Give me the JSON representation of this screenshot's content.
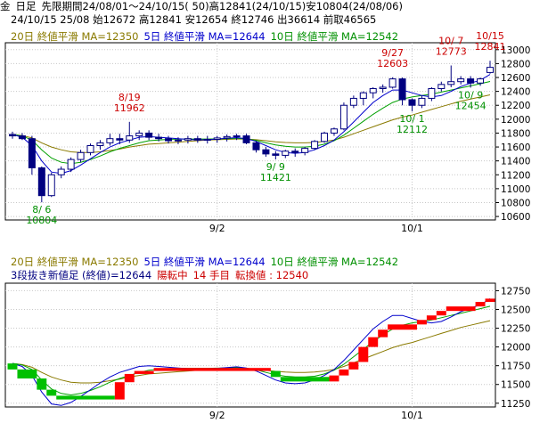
{
  "header": {
    "line1": [
      "金",
      "日足",
      "先限",
      "期間24/08/01～24/10/15( 50)高12841(24/10/15)安10804(24/08/06)"
    ],
    "line2": "24/10/15 25/08 始12672 高12841 安12654 終12746 出36614 前取46565"
  },
  "top_legend": {
    "ma20": "20日 終値平滑 MA=12350",
    "ma5": "5日 終値平滑 MA=12644",
    "ma10": "10日 終値平滑 MA=12542"
  },
  "bottom_legend": {
    "ma20": "20日 終値平滑 MA=12350",
    "ma5": "5日 終値平滑 MA=12644",
    "ma10": "10日 終値平滑 MA=12542",
    "line2_a": "3段抜き新値足 (終値)=12644",
    "line2_b": "陽転中",
    "line2_c": "14 手目",
    "line2_d": "転換値 : 12540"
  },
  "colors": {
    "up_candle": "#ffffff",
    "down_candle": "#000080",
    "ma20": "#8a7a00",
    "ma5": "#0000cc",
    "ma10": "#00a000",
    "bull_block": "#ff0000",
    "bear_block": "#00c000",
    "grid": "#c8c8c8",
    "annotation_high": "#cc0000",
    "annotation_low": "#009000"
  },
  "chart_data": [
    {
      "type": "candlestick",
      "y_ticks": [
        10600,
        10800,
        11000,
        11200,
        11400,
        11600,
        11800,
        12000,
        12200,
        12400,
        12600,
        12800,
        13000
      ],
      "ylim": [
        10550,
        13100
      ],
      "x_ticks": [
        "9/2",
        "10/1"
      ],
      "x_tick_index": [
        21,
        41
      ],
      "ohlc": [
        [
          11780,
          11820,
          11720,
          11760
        ],
        [
          11760,
          11800,
          11700,
          11720
        ],
        [
          11720,
          11760,
          11200,
          11300
        ],
        [
          11300,
          11320,
          10804,
          10900
        ],
        [
          10900,
          11230,
          10880,
          11200
        ],
        [
          11200,
          11320,
          11150,
          11280
        ],
        [
          11280,
          11450,
          11240,
          11420
        ],
        [
          11420,
          11560,
          11380,
          11520
        ],
        [
          11520,
          11650,
          11480,
          11620
        ],
        [
          11620,
          11700,
          11560,
          11660
        ],
        [
          11660,
          11790,
          11620,
          11720
        ],
        [
          11720,
          11790,
          11640,
          11700
        ],
        [
          11700,
          11962,
          11660,
          11760
        ],
        [
          11760,
          11840,
          11700,
          11800
        ],
        [
          11800,
          11840,
          11700,
          11740
        ],
        [
          11740,
          11790,
          11680,
          11720
        ],
        [
          11720,
          11760,
          11650,
          11690
        ],
        [
          11690,
          11740,
          11640,
          11700
        ],
        [
          11700,
          11760,
          11650,
          11720
        ],
        [
          11720,
          11760,
          11660,
          11700
        ],
        [
          11700,
          11760,
          11650,
          11710
        ],
        [
          11710,
          11760,
          11660,
          11730
        ],
        [
          11730,
          11780,
          11680,
          11750
        ],
        [
          11750,
          11790,
          11700,
          11760
        ],
        [
          11760,
          11790,
          11640,
          11660
        ],
        [
          11660,
          11690,
          11520,
          11560
        ],
        [
          11560,
          11600,
          11460,
          11500
        ],
        [
          11500,
          11540,
          11421,
          11480
        ],
        [
          11480,
          11560,
          11440,
          11540
        ],
        [
          11540,
          11580,
          11460,
          11520
        ],
        [
          11520,
          11600,
          11480,
          11580
        ],
        [
          11580,
          11700,
          11560,
          11680
        ],
        [
          11680,
          11820,
          11660,
          11800
        ],
        [
          11800,
          11880,
          11760,
          11860
        ],
        [
          11860,
          12240,
          11840,
          12200
        ],
        [
          12200,
          12340,
          12160,
          12300
        ],
        [
          12300,
          12400,
          12200,
          12380
        ],
        [
          12380,
          12460,
          12300,
          12440
        ],
        [
          12440,
          12500,
          12380,
          12460
        ],
        [
          12460,
          12603,
          12440,
          12580
        ],
        [
          12580,
          12600,
          12200,
          12280
        ],
        [
          12280,
          12300,
          12112,
          12200
        ],
        [
          12200,
          12340,
          12160,
          12300
        ],
        [
          12300,
          12460,
          12260,
          12440
        ],
        [
          12440,
          12540,
          12400,
          12500
        ],
        [
          12500,
          12773,
          12460,
          12540
        ],
        [
          12540,
          12620,
          12500,
          12580
        ],
        [
          12580,
          12620,
          12454,
          12520
        ],
        [
          12520,
          12600,
          12480,
          12580
        ],
        [
          12672,
          12841,
          12654,
          12746
        ]
      ],
      "ma20": [
        11780,
        11765,
        11730,
        11660,
        11600,
        11560,
        11530,
        11520,
        11520,
        11530,
        11550,
        11570,
        11600,
        11620,
        11640,
        11650,
        11660,
        11670,
        11680,
        11690,
        11700,
        11705,
        11710,
        11715,
        11715,
        11705,
        11690,
        11675,
        11665,
        11660,
        11660,
        11665,
        11680,
        11700,
        11740,
        11790,
        11840,
        11890,
        11940,
        11990,
        12030,
        12060,
        12100,
        12140,
        12180,
        12220,
        12260,
        12290,
        12320,
        12350
      ],
      "ma5": [
        11780,
        11740,
        11620,
        11400,
        11240,
        11220,
        11260,
        11340,
        11430,
        11520,
        11600,
        11660,
        11700,
        11740,
        11750,
        11740,
        11730,
        11720,
        11710,
        11700,
        11705,
        11715,
        11725,
        11735,
        11720,
        11680,
        11620,
        11560,
        11520,
        11510,
        11520,
        11560,
        11620,
        11700,
        11820,
        11960,
        12100,
        12240,
        12340,
        12420,
        12420,
        12380,
        12340,
        12320,
        12340,
        12400,
        12470,
        12520,
        12560,
        12644
      ],
      "ma10": [
        11780,
        11760,
        11700,
        11560,
        11440,
        11380,
        11360,
        11380,
        11420,
        11470,
        11530,
        11580,
        11620,
        11660,
        11690,
        11700,
        11710,
        11715,
        11715,
        11715,
        11715,
        11718,
        11720,
        11725,
        11715,
        11695,
        11660,
        11630,
        11610,
        11600,
        11600,
        11610,
        11640,
        11690,
        11770,
        11870,
        11970,
        12070,
        12160,
        12240,
        12290,
        12320,
        12340,
        12360,
        12390,
        12420,
        12450,
        12480,
        12510,
        12542
      ],
      "annotations": [
        {
          "text": "8/19",
          "sub": "11962",
          "idx": 12,
          "value": 11962,
          "kind": "high"
        },
        {
          "text": "9/27",
          "sub": "12603",
          "idx": 39,
          "value": 12603,
          "kind": "high"
        },
        {
          "text": "10/ 7",
          "sub": "12773",
          "idx": 45,
          "value": 12773,
          "kind": "high"
        },
        {
          "text": "10/15",
          "sub": "12841",
          "idx": 49,
          "value": 12841,
          "kind": "high"
        },
        {
          "text": "8/ 6",
          "sub": "10804",
          "idx": 3,
          "value": 10804,
          "kind": "low"
        },
        {
          "text": "9/ 9",
          "sub": "11421",
          "idx": 27,
          "value": 11421,
          "kind": "low"
        },
        {
          "text": "10/ 1",
          "sub": "12112",
          "idx": 41,
          "value": 12112,
          "kind": "low"
        },
        {
          "text": "10/ 9",
          "sub": "12454",
          "idx": 47,
          "value": 12454,
          "kind": "low"
        }
      ]
    },
    {
      "type": "three-line-break",
      "y_ticks": [
        11250,
        11500,
        11750,
        12000,
        12250,
        12500,
        12750
      ],
      "ylim": [
        11200,
        12850
      ],
      "x_ticks": [
        "9/2",
        "10/1"
      ],
      "blocks": [
        {
          "from": 0,
          "to": 1,
          "lo": 11700,
          "hi": 11780,
          "dir": "down"
        },
        {
          "from": 1,
          "to": 3,
          "lo": 11580,
          "hi": 11700,
          "dir": "down"
        },
        {
          "from": 3,
          "to": 4,
          "lo": 11430,
          "hi": 11580,
          "dir": "down"
        },
        {
          "from": 4,
          "to": 5,
          "lo": 11350,
          "hi": 11430,
          "dir": "down"
        },
        {
          "from": 5,
          "to": 11,
          "lo": 11300,
          "hi": 11350,
          "dir": "down"
        },
        {
          "from": 11,
          "to": 12,
          "lo": 11300,
          "hi": 11530,
          "dir": "up"
        },
        {
          "from": 12,
          "to": 13,
          "lo": 11530,
          "hi": 11640,
          "dir": "up"
        },
        {
          "from": 13,
          "to": 15,
          "lo": 11640,
          "hi": 11680,
          "dir": "up"
        },
        {
          "from": 15,
          "to": 27,
          "lo": 11680,
          "hi": 11720,
          "dir": "up"
        },
        {
          "from": 27,
          "to": 28,
          "lo": 11600,
          "hi": 11680,
          "dir": "down"
        },
        {
          "from": 28,
          "to": 33,
          "lo": 11540,
          "hi": 11600,
          "dir": "down"
        },
        {
          "from": 33,
          "to": 34,
          "lo": 11540,
          "hi": 11620,
          "dir": "up"
        },
        {
          "from": 34,
          "to": 35,
          "lo": 11620,
          "hi": 11700,
          "dir": "up"
        },
        {
          "from": 35,
          "to": 36,
          "lo": 11700,
          "hi": 11800,
          "dir": "up"
        },
        {
          "from": 36,
          "to": 37,
          "lo": 11800,
          "hi": 12000,
          "dir": "up"
        },
        {
          "from": 37,
          "to": 38,
          "lo": 12000,
          "hi": 12130,
          "dir": "up"
        },
        {
          "from": 38,
          "to": 39,
          "lo": 12130,
          "hi": 12230,
          "dir": "up"
        },
        {
          "from": 39,
          "to": 42,
          "lo": 12230,
          "hi": 12300,
          "dir": "up"
        },
        {
          "from": 42,
          "to": 43,
          "lo": 12300,
          "hi": 12360,
          "dir": "up"
        },
        {
          "from": 43,
          "to": 44,
          "lo": 12360,
          "hi": 12420,
          "dir": "up"
        },
        {
          "from": 44,
          "to": 45,
          "lo": 12420,
          "hi": 12480,
          "dir": "up"
        },
        {
          "from": 45,
          "to": 48,
          "lo": 12480,
          "hi": 12540,
          "dir": "up"
        },
        {
          "from": 48,
          "to": 49,
          "lo": 12540,
          "hi": 12600,
          "dir": "up"
        },
        {
          "from": 49,
          "to": 50,
          "lo": 12600,
          "hi": 12644,
          "dir": "up"
        }
      ]
    }
  ]
}
